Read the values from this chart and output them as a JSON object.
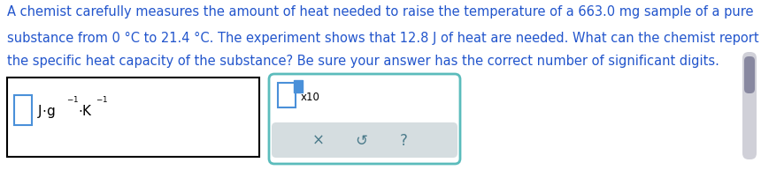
{
  "background_color": "#ffffff",
  "text_color": "#2255cc",
  "paragraph_lines": [
    "A chemist carefully measures the amount of heat needed to raise the temperature of a 663.0 mg sample of a pure",
    "substance from 0 °C to 21.4 °C. The experiment shows that 12.8 J of heat are needed. What can the chemist report for",
    "the specific heat capacity of the substance? Be sure your answer has the correct number of significant digits."
  ],
  "font_size_para": 10.5,
  "box1_border_color": "#000000",
  "box2_border_color": "#5bbcbc",
  "input_box_color": "#4a90d9",
  "button_bg": "#d5dde0",
  "scrollbar_color": "#d0d0d8",
  "scrollbar_handle_color": "#8888a0"
}
